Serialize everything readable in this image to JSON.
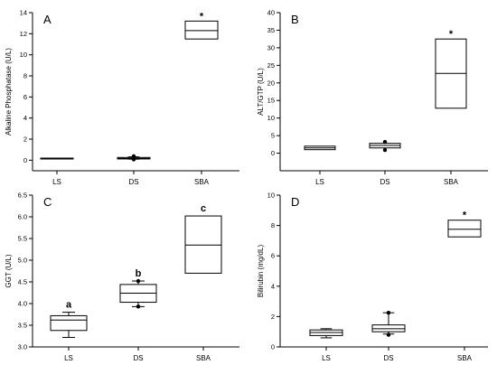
{
  "chart_data": [
    {
      "type": "box",
      "panel": "A",
      "ylabel": "Alkaline Phosphatase (U/L)",
      "ylim": [
        -1,
        14
      ],
      "yticks": [
        0,
        2,
        4,
        6,
        8,
        10,
        12,
        14
      ],
      "categories": [
        "LS",
        "DS",
        "SBA"
      ],
      "boxes": [
        {
          "category": "LS",
          "q1": 0.12,
          "median": 0.16,
          "q3": 0.2,
          "whisker_low": 0.12,
          "whisker_high": 0.2,
          "outliers": [],
          "label": ""
        },
        {
          "category": "DS",
          "q1": 0.12,
          "median": 0.18,
          "q3": 0.26,
          "whisker_low": 0.1,
          "whisker_high": 0.32,
          "outliers": [
            0.08,
            0.38
          ],
          "label": ""
        },
        {
          "category": "SBA",
          "q1": 11.5,
          "median": 12.3,
          "q3": 13.2,
          "whisker_low": 11.5,
          "whisker_high": 13.2,
          "outliers": [],
          "label": "*"
        }
      ]
    },
    {
      "type": "box",
      "panel": "B",
      "ylabel": "ALT/GTP (U/L)",
      "ylim": [
        -5,
        40
      ],
      "yticks": [
        0,
        5,
        10,
        15,
        20,
        25,
        30,
        35,
        40
      ],
      "categories": [
        "LS",
        "DS",
        "SBA"
      ],
      "boxes": [
        {
          "category": "LS",
          "q1": 1,
          "median": 1.5,
          "q3": 2,
          "whisker_low": 1,
          "whisker_high": 2,
          "outliers": [],
          "label": ""
        },
        {
          "category": "DS",
          "q1": 1.5,
          "median": 2.2,
          "q3": 2.8,
          "whisker_low": 1.5,
          "whisker_high": 2.8,
          "outliers": [
            0.9,
            3.2
          ],
          "label": ""
        },
        {
          "category": "SBA",
          "q1": 12.8,
          "median": 22.7,
          "q3": 32.5,
          "whisker_low": 12.8,
          "whisker_high": 32.5,
          "outliers": [],
          "label": "*"
        }
      ]
    },
    {
      "type": "box",
      "panel": "C",
      "ylabel": "GGT (U/L)",
      "ylim": [
        3.0,
        6.5
      ],
      "yticks": [
        3.0,
        3.5,
        4.0,
        4.5,
        5.0,
        5.5,
        6.0,
        6.5
      ],
      "ytick_labels": [
        "3.0",
        "3.5",
        "4.0",
        "4.5",
        "5.0",
        "5.5",
        "6.0",
        "6.5"
      ],
      "categories": [
        "LS",
        "DS",
        "SBA"
      ],
      "boxes": [
        {
          "category": "LS",
          "q1": 3.38,
          "median": 3.62,
          "q3": 3.72,
          "whisker_low": 3.22,
          "whisker_high": 3.8,
          "outliers": [],
          "label": "a"
        },
        {
          "category": "DS",
          "q1": 4.03,
          "median": 4.24,
          "q3": 4.44,
          "whisker_low": 3.93,
          "whisker_high": 4.52,
          "outliers": [
            3.93,
            4.52
          ],
          "label": "b"
        },
        {
          "category": "SBA",
          "q1": 4.7,
          "median": 5.35,
          "q3": 6.02,
          "whisker_low": 4.7,
          "whisker_high": 6.02,
          "outliers": [],
          "label": "c"
        }
      ]
    },
    {
      "type": "box",
      "panel": "D",
      "ylabel": "Bilirubin (mg/dL)",
      "ylim": [
        0,
        10
      ],
      "yticks": [
        0,
        2,
        4,
        6,
        8,
        10
      ],
      "categories": [
        "LS",
        "DS",
        "SBA"
      ],
      "boxes": [
        {
          "category": "LS",
          "q1": 0.75,
          "median": 0.95,
          "q3": 1.12,
          "whisker_low": 0.6,
          "whisker_high": 1.2,
          "outliers": [],
          "label": ""
        },
        {
          "category": "DS",
          "q1": 1.0,
          "median": 1.2,
          "q3": 1.45,
          "whisker_low": 0.85,
          "whisker_high": 2.25,
          "outliers": [
            0.8,
            2.25
          ],
          "label": ""
        },
        {
          "category": "SBA",
          "q1": 7.25,
          "median": 7.75,
          "q3": 8.35,
          "whisker_low": 7.25,
          "whisker_high": 8.35,
          "outliers": [],
          "label": "*"
        }
      ]
    }
  ]
}
